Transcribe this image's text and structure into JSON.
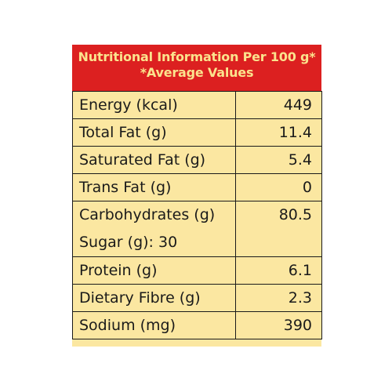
{
  "header": {
    "title_line1": "Nutritional Information Per 100 g*",
    "title_line2": "*Average Values"
  },
  "rows": [
    {
      "name": "Energy (kcal)",
      "value": "449"
    },
    {
      "name": "Total Fat (g)",
      "value": "11.4"
    },
    {
      "name": "Saturated Fat (g)",
      "value": "5.4"
    },
    {
      "name": "Trans Fat (g)",
      "value": "0"
    },
    {
      "name": "Carbohydrates (g)",
      "value": "80.5",
      "sub": "Sugar (g): 30"
    },
    {
      "name": "Protein (g)",
      "value": "6.1"
    },
    {
      "name": "Dietary Fibre (g)",
      "value": "2.3"
    },
    {
      "name": "Sodium (mg)",
      "value": "390"
    }
  ],
  "colors": {
    "header_bg": "#dc2020",
    "header_text": "#fbe38d",
    "panel_bg": "#fbe7a1",
    "border": "#1a1a1a"
  }
}
